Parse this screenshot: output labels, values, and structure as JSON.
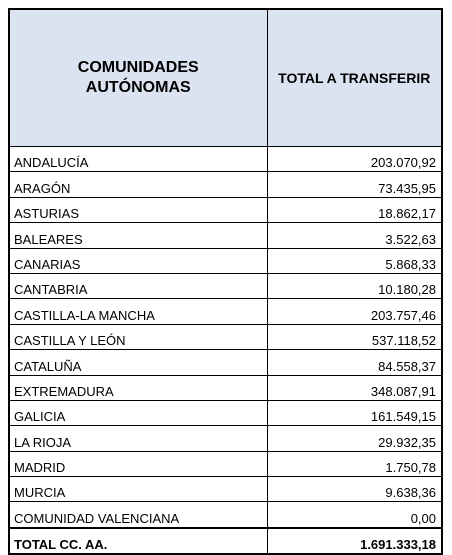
{
  "table": {
    "headers": [
      "COMUNIDADES AUTÓNOMAS",
      "TOTAL A TRANSFERIR"
    ],
    "rows": [
      [
        "ANDALUCÍA",
        "203.070,92"
      ],
      [
        "ARAGÓN",
        "73.435,95"
      ],
      [
        "ASTURIAS",
        "18.862,17"
      ],
      [
        "BALEARES",
        "3.522,63"
      ],
      [
        "CANARIAS",
        "5.868,33"
      ],
      [
        "CANTABRIA",
        "10.180,28"
      ],
      [
        "CASTILLA-LA MANCHA",
        "203.757,46"
      ],
      [
        "CASTILLA Y LEÓN",
        "537.118,52"
      ],
      [
        "CATALUÑA",
        "84.558,37"
      ],
      [
        "EXTREMADURA",
        "348.087,91"
      ],
      [
        "GALICIA",
        "161.549,15"
      ],
      [
        "LA RIOJA",
        "29.932,35"
      ],
      [
        "MADRID",
        "1.750,78"
      ],
      [
        "MURCIA",
        "9.638,36"
      ],
      [
        "COMUNIDAD VALENCIANA",
        "0,00"
      ]
    ],
    "total": [
      "TOTAL CC. AA.",
      "1.691.333,18"
    ]
  }
}
